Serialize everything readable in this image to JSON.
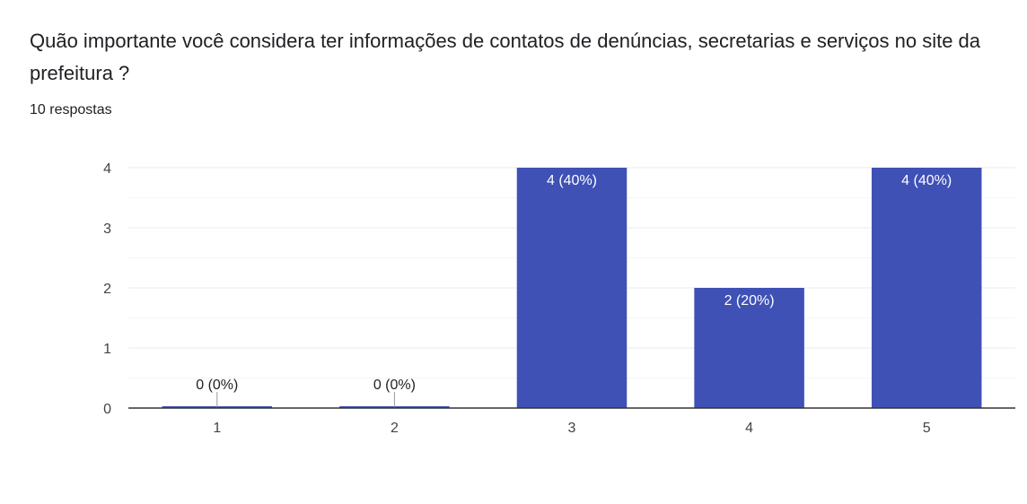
{
  "question": {
    "title": "Quão importante você considera ter informações de contatos de denúncias, secretarias e serviços no site da prefeitura ?",
    "responses": "10 respostas"
  },
  "colors": {
    "bar": "#3f51b5",
    "gridline": "#ebebeb",
    "minor_gridline": "#f5f5f5",
    "axis": "#333333",
    "label_inside": "#ffffff",
    "label_outside": "#222222"
  },
  "chart_data": {
    "type": "bar",
    "categories": [
      "1",
      "2",
      "3",
      "4",
      "5"
    ],
    "values": [
      0,
      0,
      4,
      2,
      4
    ],
    "data_labels": [
      "0 (0%)",
      "0 (0%)",
      "4 (40%)",
      "2 (20%)",
      "4 (40%)"
    ],
    "y_ticks": [
      "0",
      "1",
      "2",
      "3",
      "4"
    ],
    "ylim": [
      0,
      4
    ],
    "grid": true,
    "legend": "none"
  }
}
